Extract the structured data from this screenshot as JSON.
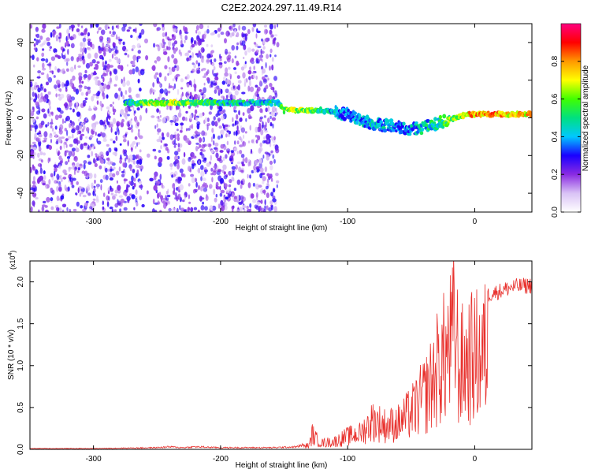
{
  "title": "C2E2.2024.297.11.49.R14",
  "chart_data": [
    {
      "type": "heatmap",
      "xlabel": "Height of straight line (km)",
      "ylabel": "Frequency (Hz)",
      "xlim": [
        -350,
        45
      ],
      "ylim": [
        -50,
        50
      ],
      "xticks": [
        -300,
        -200,
        -100,
        0
      ],
      "yticks": [
        -40,
        -20,
        0,
        20,
        40
      ],
      "colorbar": {
        "label": "Normalized spectral amplitude",
        "range": [
          0.0,
          1.0
        ],
        "ticks": [
          "0.0",
          "0.2",
          "0.4",
          "0.6",
          "0.8"
        ],
        "colors": [
          "#ffffff",
          "#d9c2f5",
          "#8a2be2",
          "#1a00ff",
          "#00c8ff",
          "#00e080",
          "#40ff00",
          "#ffff00",
          "#ff9900",
          "#ff0000",
          "#ff0080"
        ]
      },
      "ridge": {
        "x": [
          -275,
          -250,
          -225,
          -200,
          -175,
          -155,
          -150,
          -140,
          -130,
          -120,
          -110,
          -100,
          -90,
          -80,
          -70,
          -60,
          -50,
          -40,
          -30,
          -20,
          -15,
          -10,
          -5,
          0,
          10,
          20,
          30,
          45
        ],
        "y": [
          8,
          8,
          8,
          8,
          8,
          8,
          4,
          4,
          4,
          4,
          3,
          2,
          -1,
          -3,
          -4,
          -5,
          -6,
          -5,
          -3,
          -1,
          0,
          1,
          2,
          2,
          2,
          2,
          2,
          2
        ],
        "amplitude": [
          0.55,
          0.8,
          0.7,
          0.6,
          0.55,
          0.6,
          0.7,
          0.75,
          0.7,
          0.6,
          0.5,
          0.45,
          0.5,
          0.55,
          0.5,
          0.45,
          0.5,
          0.55,
          0.6,
          0.7,
          0.75,
          0.8,
          0.85,
          0.9,
          0.9,
          0.9,
          0.85,
          0.85
        ]
      },
      "noise_region_x": [
        -350,
        -155
      ]
    },
    {
      "type": "line",
      "xlabel": "Height of straight line (km)",
      "ylabel": "SNR (10 * v/v)",
      "y_multiplier": "(x10",
      "y_multiplier_exp": "4",
      "y_multiplier_close": ")",
      "xlim": [
        -350,
        45
      ],
      "ylim": [
        0.0,
        2.25
      ],
      "xticks": [
        -300,
        -200,
        -100,
        0
      ],
      "yticks": [
        "0.0",
        "0.5",
        "1.0",
        "1.5",
        "2.0"
      ],
      "color": "#e8302c",
      "envelope": {
        "x": [
          -350,
          -300,
          -250,
          -240,
          -230,
          -220,
          -200,
          -180,
          -160,
          -140,
          -130,
          -128,
          -125,
          -120,
          -110,
          -100,
          -90,
          -80,
          -70,
          -60,
          -50,
          -40,
          -35,
          -30,
          -25,
          -20,
          -15,
          -12,
          -10,
          -5,
          0,
          5,
          10,
          20,
          30,
          45
        ],
        "y": [
          0.01,
          0.01,
          0.02,
          0.03,
          0.02,
          0.03,
          0.02,
          0.02,
          0.02,
          0.03,
          0.08,
          0.3,
          0.2,
          0.12,
          0.15,
          0.25,
          0.3,
          0.55,
          0.45,
          0.5,
          0.7,
          1.0,
          1.2,
          1.5,
          1.7,
          1.9,
          2.3,
          1.4,
          1.6,
          1.7,
          1.75,
          1.8,
          1.9,
          1.95,
          2.0,
          2.02
        ]
      }
    }
  ]
}
